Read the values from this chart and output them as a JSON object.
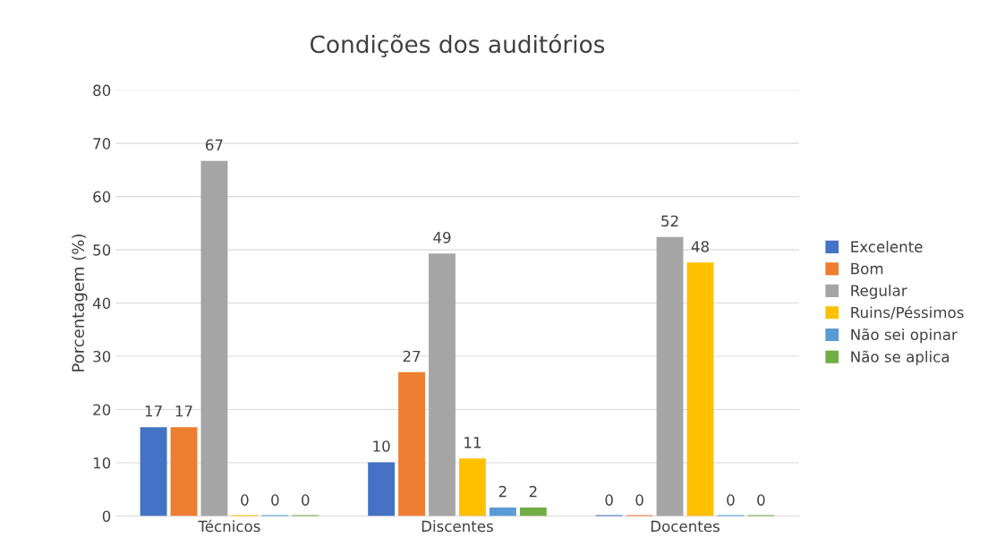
{
  "chart_data": {
    "type": "bar",
    "title": "Condições dos auditórios",
    "ylabel": "Porcentagem (%)",
    "categories": [
      "Técnicos",
      "Discentes",
      "Docentes"
    ],
    "series": [
      {
        "name": "Excelente",
        "color": "#4472c4",
        "values": [
          16.7,
          10.1,
          0
        ],
        "value_labels": [
          "17",
          "10",
          "0"
        ]
      },
      {
        "name": "Bom",
        "color": "#ed7d31",
        "values": [
          16.7,
          27.0,
          0
        ],
        "value_labels": [
          "17",
          "27",
          "0"
        ]
      },
      {
        "name": "Regular",
        "color": "#a5a5a5",
        "values": [
          66.7,
          49.3,
          52.4
        ],
        "value_labels": [
          "67",
          "49",
          "52"
        ]
      },
      {
        "name": "Ruins/Péssimos",
        "color": "#ffc000",
        "values": [
          0,
          10.8,
          47.6
        ],
        "value_labels": [
          "0",
          "11",
          "48"
        ]
      },
      {
        "name": "Não sei opinar",
        "color": "#5b9bd5",
        "values": [
          0,
          1.6,
          0
        ],
        "value_labels": [
          "0",
          "2",
          "0"
        ]
      },
      {
        "name": "Não se aplica",
        "color": "#70ad47",
        "values": [
          0,
          1.6,
          0
        ],
        "value_labels": [
          "0",
          "2",
          "0"
        ]
      }
    ],
    "ylim": [
      0,
      80
    ],
    "yticks": [
      0,
      10,
      20,
      30,
      40,
      50,
      60,
      70,
      80
    ],
    "grid": "y",
    "legend": "right"
  }
}
